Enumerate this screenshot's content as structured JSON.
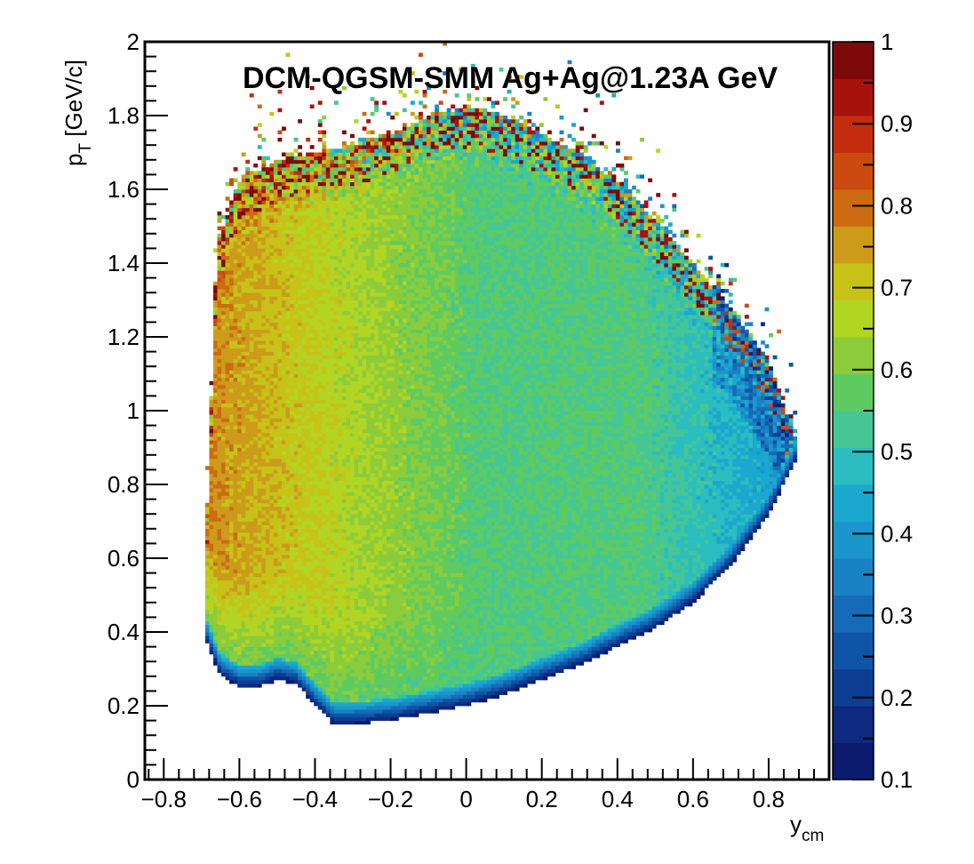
{
  "chart_data": {
    "type": "heatmap",
    "title": "DCM-QGSM-SMM Ag+Ag@1.23A GeV",
    "xlabel": {
      "main": "y",
      "sub": "cm"
    },
    "ylabel": {
      "main": "p",
      "sub": "T",
      "rest": " [GeV/c]"
    },
    "xlim": [
      -0.85,
      0.96
    ],
    "ylim": [
      0,
      2
    ],
    "zlim": [
      0.1,
      1
    ],
    "x_ticks": [
      -0.8,
      -0.6,
      -0.4,
      -0.2,
      0,
      0.2,
      0.4,
      0.6,
      0.8
    ],
    "x_tick_labels": [
      "−0.8",
      "−0.6",
      "−0.4",
      "−0.2",
      "0",
      "0.2",
      "0.4",
      "0.6",
      "0.8"
    ],
    "y_ticks": [
      0,
      0.2,
      0.4,
      0.6,
      0.8,
      1,
      1.2,
      1.4,
      1.6,
      1.8,
      2
    ],
    "y_tick_labels": [
      "0",
      "0.2",
      "0.4",
      "0.6",
      "0.8",
      "1",
      "1.2",
      "1.4",
      "1.6",
      "1.8",
      "2"
    ],
    "z_ticks": [
      0.1,
      0.2,
      0.3,
      0.4,
      0.5,
      0.6,
      0.7,
      0.8,
      0.9,
      1
    ],
    "z_tick_labels": [
      "0.1",
      "0.2",
      "0.3",
      "0.4",
      "0.5",
      "0.6",
      "0.7",
      "0.8",
      "0.9",
      "1"
    ],
    "palette": [
      "#0d1b6e",
      "#0d2a80",
      "#0d3e92",
      "#0f55a6",
      "#156bb8",
      "#1a82c4",
      "#1a96cc",
      "#1aa8cf",
      "#2bbdc0",
      "#45c694",
      "#5ecb61",
      "#8ccc3a",
      "#b2d524",
      "#c7c218",
      "#cc9b1a",
      "#cc6b12",
      "#cc4a0f",
      "#c42c0f",
      "#a8120d",
      "#7c0a0a"
    ],
    "grid": false,
    "colorbar": "right",
    "acceptance_region": {
      "upper_pt_edge": {
        "y": [
          -0.69,
          -0.66,
          -0.6,
          -0.5,
          -0.4,
          -0.3,
          -0.2,
          -0.1,
          0.0,
          0.1,
          0.2,
          0.3,
          0.4,
          0.5,
          0.6,
          0.7,
          0.8,
          0.88
        ],
        "pt": [
          0.6,
          1.45,
          1.62,
          1.68,
          1.7,
          1.72,
          1.75,
          1.8,
          1.82,
          1.8,
          1.75,
          1.7,
          1.62,
          1.52,
          1.4,
          1.28,
          1.13,
          0.9
        ]
      },
      "lower_pt_edge": {
        "y": [
          -0.69,
          -0.65,
          -0.6,
          -0.55,
          -0.5,
          -0.45,
          -0.4,
          -0.35,
          -0.3,
          -0.2,
          -0.1,
          0.0,
          0.1,
          0.2,
          0.3,
          0.4,
          0.5,
          0.6,
          0.7,
          0.8,
          0.88
        ],
        "pt": [
          0.38,
          0.28,
          0.25,
          0.25,
          0.27,
          0.26,
          0.2,
          0.15,
          0.15,
          0.16,
          0.18,
          0.2,
          0.23,
          0.27,
          0.31,
          0.36,
          0.41,
          0.48,
          0.58,
          0.72,
          0.88
        ]
      }
    }
  }
}
